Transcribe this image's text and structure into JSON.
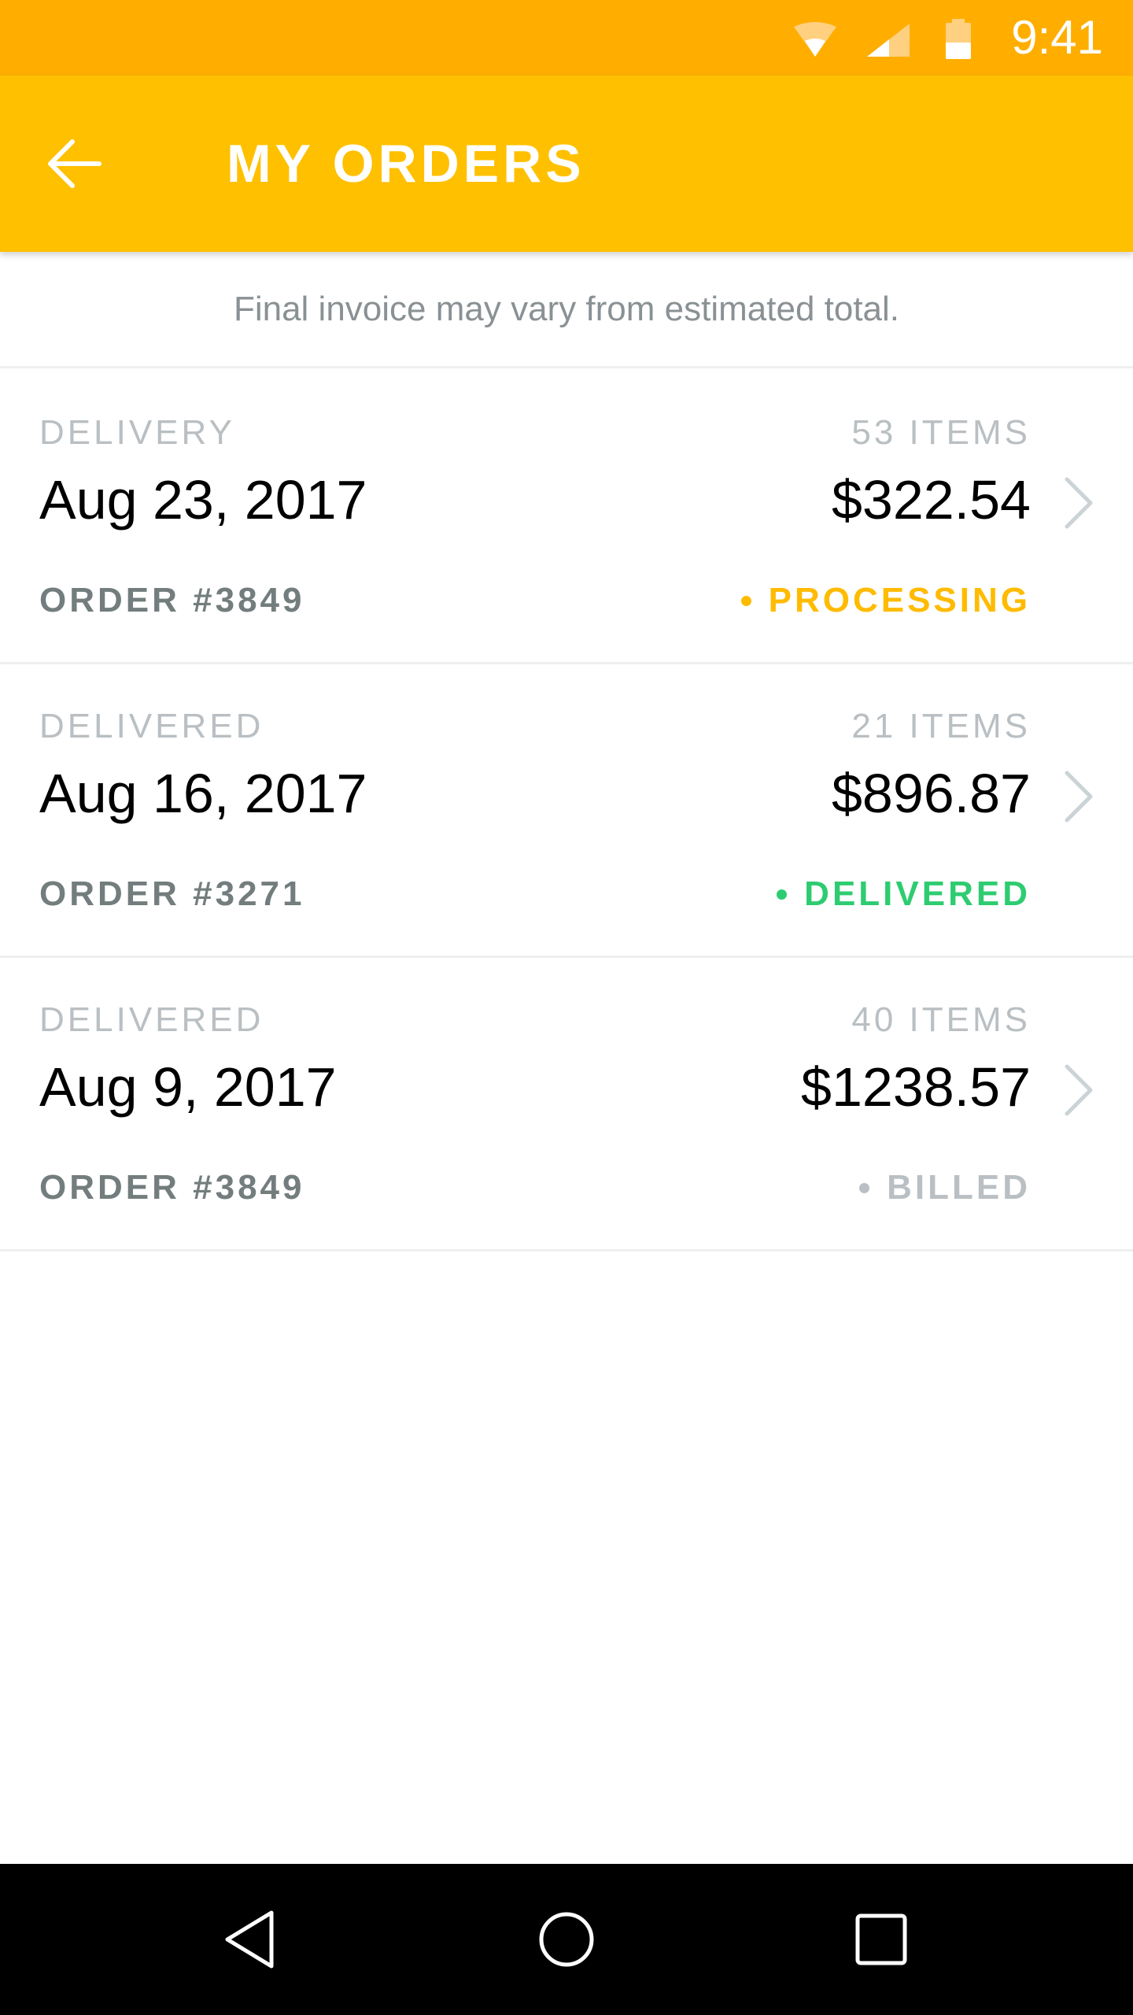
{
  "status_bar": {
    "time": "9:41",
    "icons": [
      "wifi-icon",
      "cell-signal-icon",
      "battery-icon"
    ]
  },
  "app_bar": {
    "title": "MY ORDERS",
    "back_icon": "arrow-left-icon"
  },
  "notice": "Final invoice may vary from estimated total.",
  "orders": [
    {
      "type": "DELIVERY",
      "date": "Aug 23, 2017",
      "order_number": "ORDER #3849",
      "items": "53 ITEMS",
      "total": "$322.54",
      "status": "PROCESSING",
      "status_color": "#FFBB00"
    },
    {
      "type": "DELIVERED",
      "date": "Aug 16, 2017",
      "order_number": "ORDER #3271",
      "items": "21 ITEMS",
      "total": "$896.87",
      "status": "DELIVERED",
      "status_color": "#2ECC71"
    },
    {
      "type": "DELIVERED",
      "date": "Aug 9, 2017",
      "order_number": "ORDER #3849",
      "items": "40 ITEMS",
      "total": "$1238.57",
      "status": "BILLED",
      "status_color": "#B9BFC2"
    }
  ],
  "nav_bar": {
    "buttons": [
      "nav-back-icon",
      "nav-home-icon",
      "nav-recent-apps-icon"
    ]
  },
  "colors": {
    "status_bar": "#FFAE00",
    "app_bar": "#FFC000",
    "divider": "#EDEFF0",
    "muted_text": "#B9BFC2",
    "order_number_text": "#737D7E"
  }
}
